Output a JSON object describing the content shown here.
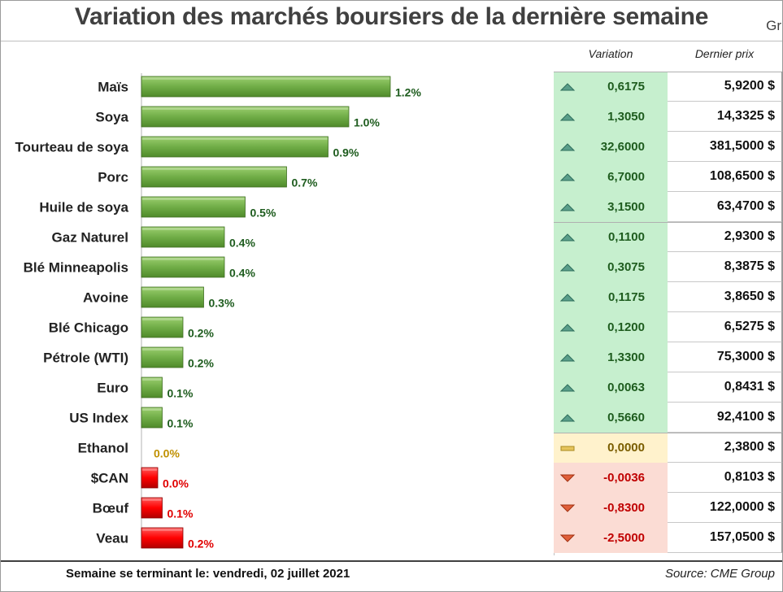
{
  "title": "Variation des marchés boursiers de la dernière semaine",
  "corner_text": "Gr",
  "table": {
    "col_variation": "Variation",
    "col_price": "Dernier prix"
  },
  "footer": {
    "left": "Semaine se terminant le:  vendredi, 02 juillet 2021",
    "right": "Source: CME Group"
  },
  "colors": {
    "up_bar": "#70ad47",
    "flat_label": "#c09000",
    "down_bar": "#ff0000",
    "up_label": "#1e5c1e",
    "down_label": "#e00000"
  },
  "chart_data": {
    "type": "bar",
    "orientation": "horizontal",
    "categories": [
      "Maïs",
      "Soya",
      "Tourteau de soya",
      "Porc",
      "Huile de soya",
      "Gaz Naturel",
      "Blé Minneapolis",
      "Avoine",
      "Blé Chicago",
      "Pétrole (WTI)",
      "Euro",
      "US Index",
      "Ethanol",
      "$CAN",
      "Bœuf",
      "Veau"
    ],
    "values": [
      1.2,
      1.0,
      0.9,
      0.7,
      0.5,
      0.4,
      0.4,
      0.3,
      0.2,
      0.2,
      0.1,
      0.1,
      0.0,
      0.0,
      0.1,
      0.2
    ],
    "value_labels": [
      "1.2%",
      "1.0%",
      "0.9%",
      "0.7%",
      "0.5%",
      "0.4%",
      "0.4%",
      "0.3%",
      "0.2%",
      "0.2%",
      "0.1%",
      "0.1%",
      "0.0%",
      "0.0%",
      "0.1%",
      "0.2%"
    ],
    "direction": [
      "up",
      "up",
      "up",
      "up",
      "up",
      "up",
      "up",
      "up",
      "up",
      "up",
      "up",
      "up",
      "flat",
      "down",
      "down",
      "down"
    ],
    "variation": [
      "0,6175",
      "1,3050",
      "32,6000",
      "6,7000",
      "3,1500",
      "0,1100",
      "0,3075",
      "0,1175",
      "0,1200",
      "1,3300",
      "0,0063",
      "0,5660",
      "0,0000",
      "-0,0036",
      "-0,8300",
      "-2,5000"
    ],
    "last_price": [
      "5,9200 $",
      "14,3325 $",
      "381,5000 $",
      "108,6500 $",
      "63,4700 $",
      "2,9300 $",
      "8,3875 $",
      "3,8650 $",
      "6,5275 $",
      "75,3000 $",
      "0,8431 $",
      "92,4100 $",
      "2,3800 $",
      "0,8103 $",
      "122,0000 $",
      "157,0500 $"
    ],
    "grid": false,
    "legend": "none"
  }
}
